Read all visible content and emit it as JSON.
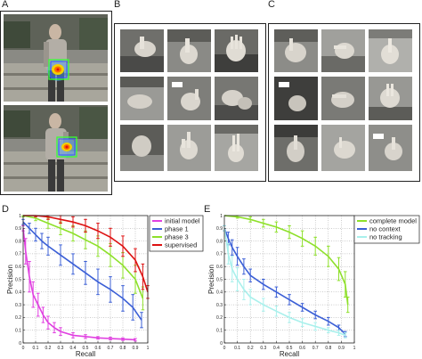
{
  "panels": {
    "a": {
      "letter": "A"
    },
    "b": {
      "letter": "B"
    },
    "c": {
      "letter": "C"
    },
    "d": {
      "letter": "D"
    },
    "e": {
      "letter": "E"
    }
  },
  "colors": {
    "magenta": "#e040e0",
    "blue": "#3b5fd6",
    "green": "#8ee02a",
    "red": "#dd1111",
    "cyan": "#a9f0ec",
    "grid": "#9a9a9a"
  },
  "chart_data": [
    {
      "id": "D",
      "type": "line",
      "title": "",
      "xlabel": "Recall",
      "ylabel": "Precision",
      "xlim": [
        0,
        1
      ],
      "ylim": [
        0,
        1
      ],
      "xticks": [
        "0",
        "0.1",
        "0.2",
        "0.3",
        "0.4",
        "0.5",
        "0.6",
        "0.7",
        "0.8",
        "0.9",
        "1"
      ],
      "yticks": [
        "0",
        "0.1",
        "0.2",
        "0.3",
        "0.4",
        "0.5",
        "0.6",
        "0.7",
        "0.8",
        "0.9",
        "1"
      ],
      "grid": true,
      "legend_position": "top-right",
      "series": [
        {
          "name": "initial model",
          "color": "#e040e0",
          "x": [
            0.0,
            0.02,
            0.05,
            0.08,
            0.12,
            0.16,
            0.2,
            0.25,
            0.3,
            0.4,
            0.5,
            0.6,
            0.7,
            0.8,
            0.9
          ],
          "y": [
            0.9,
            0.72,
            0.52,
            0.38,
            0.3,
            0.22,
            0.16,
            0.12,
            0.09,
            0.06,
            0.05,
            0.04,
            0.035,
            0.03,
            0.025
          ],
          "err": [
            0.02,
            0.1,
            0.12,
            0.1,
            0.09,
            0.06,
            0.05,
            0.04,
            0.03,
            0.02,
            0.015,
            0.01,
            0.01,
            0.01,
            0.01
          ]
        },
        {
          "name": "phase 1",
          "color": "#3b5fd6",
          "x": [
            0.0,
            0.05,
            0.1,
            0.15,
            0.2,
            0.3,
            0.4,
            0.5,
            0.6,
            0.7,
            0.8,
            0.88,
            0.95
          ],
          "y": [
            0.95,
            0.9,
            0.85,
            0.8,
            0.76,
            0.69,
            0.62,
            0.55,
            0.48,
            0.42,
            0.35,
            0.28,
            0.18
          ],
          "err": [
            0.02,
            0.04,
            0.05,
            0.06,
            0.07,
            0.08,
            0.08,
            0.09,
            0.1,
            0.1,
            0.1,
            0.1,
            0.06
          ]
        },
        {
          "name": "phase 3",
          "color": "#8ee02a",
          "x": [
            0.0,
            0.1,
            0.2,
            0.3,
            0.4,
            0.5,
            0.6,
            0.7,
            0.8,
            0.9,
            0.96
          ],
          "y": [
            1.0,
            0.98,
            0.94,
            0.9,
            0.86,
            0.81,
            0.76,
            0.69,
            0.61,
            0.5,
            0.35
          ],
          "err": [
            0.01,
            0.02,
            0.04,
            0.05,
            0.06,
            0.07,
            0.08,
            0.09,
            0.1,
            0.11,
            0.09
          ]
        },
        {
          "name": "supervised",
          "color": "#dd1111",
          "x": [
            0.0,
            0.1,
            0.2,
            0.3,
            0.4,
            0.5,
            0.6,
            0.7,
            0.8,
            0.9,
            0.96,
            1.0
          ],
          "y": [
            1.0,
            1.0,
            0.99,
            0.97,
            0.95,
            0.92,
            0.88,
            0.83,
            0.76,
            0.65,
            0.52,
            0.4
          ],
          "err": [
            0.0,
            0.01,
            0.02,
            0.03,
            0.04,
            0.05,
            0.06,
            0.07,
            0.08,
            0.09,
            0.1,
            0.05
          ]
        }
      ]
    },
    {
      "id": "E",
      "type": "line",
      "title": "",
      "xlabel": "Recall",
      "ylabel": "Precision",
      "xlim": [
        0,
        1
      ],
      "ylim": [
        0,
        1
      ],
      "xticks": [
        "0",
        "0.1",
        "0.2",
        "0.3",
        "0.4",
        "0.5",
        "0.6",
        "0.7",
        "0.8",
        "0.9",
        "1"
      ],
      "yticks": [
        "0",
        "0.1",
        "0.2",
        "0.3",
        "0.4",
        "0.5",
        "0.6",
        "0.7",
        "0.8",
        "0.9",
        "1"
      ],
      "grid": true,
      "legend_position": "top-right",
      "series": [
        {
          "name": "complete model",
          "color": "#8ee02a",
          "x": [
            0.0,
            0.1,
            0.2,
            0.3,
            0.4,
            0.5,
            0.6,
            0.7,
            0.8,
            0.88,
            0.93,
            0.95
          ],
          "y": [
            1.0,
            0.99,
            0.97,
            0.94,
            0.91,
            0.87,
            0.82,
            0.76,
            0.68,
            0.58,
            0.46,
            0.3
          ],
          "err": [
            0.0,
            0.01,
            0.02,
            0.03,
            0.04,
            0.05,
            0.06,
            0.07,
            0.08,
            0.09,
            0.1,
            0.06
          ]
        },
        {
          "name": "no context",
          "color": "#3b5fd6",
          "x": [
            0.0,
            0.03,
            0.06,
            0.1,
            0.15,
            0.2,
            0.3,
            0.4,
            0.5,
            0.6,
            0.7,
            0.8,
            0.88,
            0.93
          ],
          "y": [
            0.9,
            0.82,
            0.75,
            0.68,
            0.6,
            0.53,
            0.46,
            0.4,
            0.34,
            0.28,
            0.22,
            0.17,
            0.12,
            0.07
          ],
          "err": [
            0.02,
            0.05,
            0.06,
            0.07,
            0.06,
            0.05,
            0.04,
            0.04,
            0.04,
            0.03,
            0.03,
            0.03,
            0.02,
            0.02
          ]
        },
        {
          "name": "no tracking",
          "color": "#a9f0ec",
          "x": [
            0.0,
            0.03,
            0.06,
            0.1,
            0.15,
            0.2,
            0.3,
            0.4,
            0.5,
            0.6,
            0.7,
            0.8,
            0.88,
            0.93
          ],
          "y": [
            0.9,
            0.7,
            0.58,
            0.5,
            0.42,
            0.36,
            0.3,
            0.25,
            0.2,
            0.16,
            0.13,
            0.1,
            0.08,
            0.06
          ],
          "err": [
            0.02,
            0.08,
            0.1,
            0.09,
            0.08,
            0.06,
            0.05,
            0.04,
            0.04,
            0.03,
            0.03,
            0.02,
            0.02,
            0.02
          ]
        }
      ]
    }
  ]
}
